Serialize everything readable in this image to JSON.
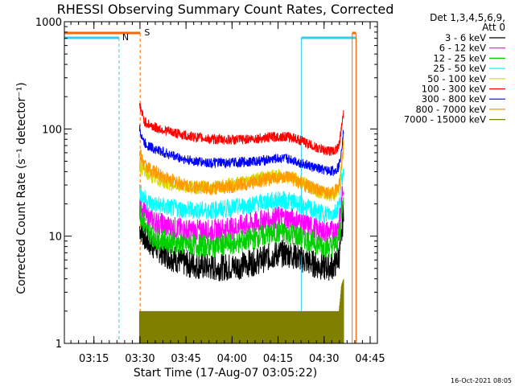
{
  "chart_data": {
    "type": "line",
    "title": "RHESSI Observing Summary Count Rates, Corrected",
    "xlabel": "Start Time (17-Aug-07 03:05:22)",
    "ylabel": "Corrected Count Rate (s⁻¹ detector⁻¹)",
    "y_scale": "log",
    "ylim": [
      1,
      1000
    ],
    "x_unit": "minutes after 03:05:22",
    "xlim": [
      0,
      102
    ],
    "x_ticks": [
      {
        "label": "03:15",
        "minutes": 9.63
      },
      {
        "label": "03:30",
        "minutes": 24.63
      },
      {
        "label": "03:45",
        "minutes": 39.63
      },
      {
        "label": "04:00",
        "minutes": 54.63
      },
      {
        "label": "04:15",
        "minutes": 69.63
      },
      {
        "label": "04:30",
        "minutes": 84.63
      },
      {
        "label": "04:45",
        "minutes": 99.63
      }
    ],
    "y_ticks": [
      {
        "label": "1",
        "value": 1
      },
      {
        "label": "10",
        "value": 10
      },
      {
        "label": "100",
        "value": 100
      },
      {
        "label": "1000",
        "value": 1000
      }
    ],
    "legend": {
      "position": "right",
      "header_line1": "Det 1,3,4,5,6,9,",
      "header_line2": "Att 0"
    },
    "series": [
      {
        "name": "3 - 6 keV",
        "color": "#000000",
        "noise": 0.6,
        "x": [
          24.5,
          27,
          30,
          34,
          40,
          48,
          56,
          64,
          70,
          74,
          78,
          82,
          85,
          88,
          89.5,
          90.3,
          91
        ],
        "y": [
          12,
          9,
          7.8,
          6.5,
          5.5,
          5.1,
          5.2,
          6.0,
          6.9,
          6.8,
          6.0,
          5.4,
          5.1,
          5.3,
          6.5,
          9.5,
          18
        ]
      },
      {
        "name": "6 - 12 keV",
        "color": "#ff00ff",
        "noise": 0.5,
        "x": [
          24.5,
          27,
          30,
          34,
          40,
          48,
          56,
          64,
          70,
          74,
          78,
          82,
          85,
          88,
          89.5,
          90.3,
          91
        ],
        "y": [
          20,
          15,
          13.5,
          12.2,
          11.3,
          11.2,
          12.1,
          13.8,
          15.0,
          14.6,
          13.0,
          11.6,
          10.9,
          11.1,
          13.0,
          20,
          32
        ]
      },
      {
        "name": "12 - 25 keV",
        "color": "#00d000",
        "noise": 0.5,
        "x": [
          24.5,
          27,
          30,
          34,
          40,
          48,
          56,
          64,
          70,
          74,
          78,
          82,
          85,
          88,
          89.5,
          90.3,
          91
        ],
        "y": [
          17,
          11,
          9.6,
          8.9,
          8.3,
          8.1,
          8.6,
          10.0,
          10.8,
          10.5,
          9.5,
          8.6,
          7.9,
          8.1,
          9.5,
          16,
          28
        ]
      },
      {
        "name": "25 - 50 keV",
        "color": "#00ffff",
        "noise": 0.4,
        "x": [
          24.5,
          27,
          30,
          34,
          40,
          48,
          56,
          64,
          70,
          74,
          78,
          82,
          85,
          88,
          89.5,
          90.3,
          91
        ],
        "y": [
          26,
          21,
          19.5,
          18.5,
          17.5,
          17.4,
          18.6,
          20.5,
          21.8,
          21.2,
          19.0,
          17.0,
          16.0,
          16.5,
          19.5,
          30,
          45
        ]
      },
      {
        "name": "50 - 100 keV",
        "color": "#d8d800",
        "noise": 0.3,
        "x": [
          24.5,
          27,
          30,
          34,
          40,
          48,
          56,
          64,
          70,
          74,
          78,
          82,
          85,
          88,
          89.5,
          90.3,
          91
        ],
        "y": [
          46,
          38,
          34,
          31,
          28.5,
          28.5,
          31,
          35,
          36.5,
          35.5,
          31,
          27,
          24.5,
          24.5,
          28,
          45,
          70
        ]
      },
      {
        "name": "100 - 300 keV",
        "color": "#ff0000",
        "noise": 0.22,
        "x": [
          24.5,
          26,
          28,
          30,
          34,
          40,
          48,
          56,
          64,
          70,
          74,
          78,
          82,
          85,
          88,
          89.5,
          90.3,
          91
        ],
        "y": [
          170,
          118,
          108,
          102,
          95,
          86,
          80,
          79,
          82,
          85,
          84,
          76,
          67,
          63,
          62,
          70,
          100,
          155
        ]
      },
      {
        "name": "300 - 800 keV",
        "color": "#0000ff",
        "noise": 0.22,
        "x": [
          24.5,
          26,
          28,
          30,
          34,
          40,
          48,
          56,
          64,
          70,
          74,
          78,
          82,
          85,
          88,
          89.5,
          90.3,
          91
        ],
        "y": [
          100,
          74,
          68,
          64,
          58,
          51,
          48,
          48.5,
          50.5,
          53,
          52,
          47,
          43,
          41,
          40.5,
          45,
          65,
          100
        ]
      },
      {
        "name": "800 - 7000 keV",
        "color": "#ff9900",
        "noise": 0.3,
        "x": [
          24.5,
          26,
          28,
          30,
          34,
          40,
          48,
          56,
          64,
          70,
          74,
          78,
          82,
          85,
          88,
          89.5,
          90.3,
          91
        ],
        "y": [
          60,
          46,
          42,
          39,
          34,
          29.5,
          28,
          29.5,
          33,
          35.5,
          34.5,
          30.5,
          27,
          25.5,
          26,
          30,
          45,
          75
        ]
      },
      {
        "name": "7000 - 15000 keV",
        "color": "#808000",
        "noise": 0,
        "x": [
          24.5,
          89.5,
          90.3,
          91
        ],
        "y": [
          2,
          2,
          3.5,
          4
        ]
      }
    ],
    "annotations": [
      {
        "text": "S",
        "color": "#ff6600",
        "minutes": 25.0
      },
      {
        "text": "N",
        "color": "#33ccee",
        "minutes": 17.8
      }
    ],
    "intervals": [
      {
        "kind": "night",
        "color": "#33ccee",
        "start": 0,
        "end": 17.8
      },
      {
        "kind": "night",
        "color": "#33ccee",
        "start": 77.2,
        "end": 95.2
      },
      {
        "kind": "saa",
        "color": "#ff6600",
        "start": 0,
        "end": 24.7
      },
      {
        "kind": "saa",
        "color": "#ff6600",
        "start": 93.8,
        "end": 95.0
      }
    ]
  },
  "footer": {
    "timestamp": "16-Oct-2021 08:05"
  }
}
